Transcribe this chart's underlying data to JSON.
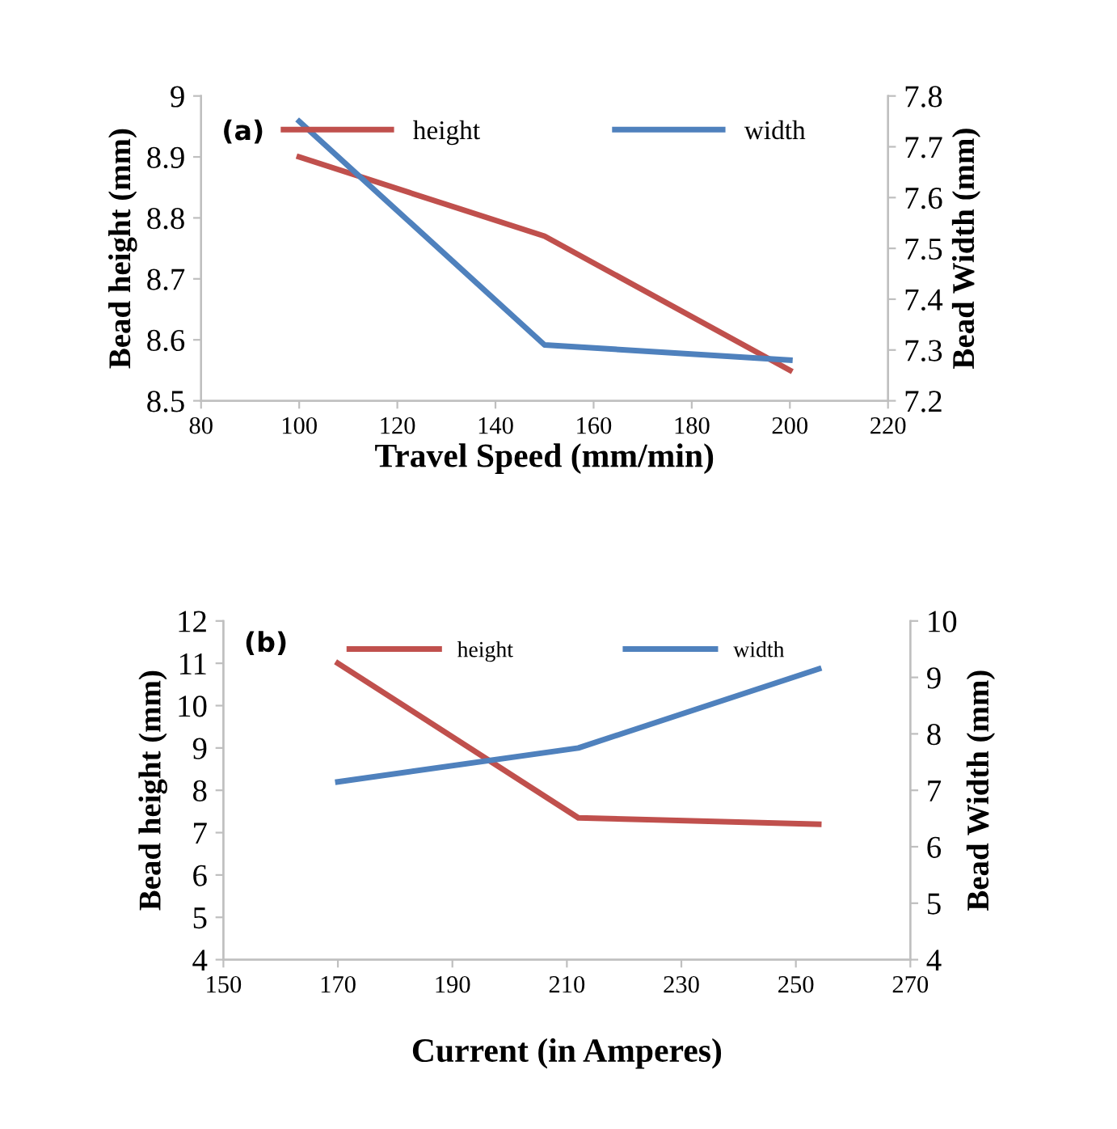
{
  "chart_data": [
    {
      "type": "line",
      "xlabel": "Travel Speed (mm/min)",
      "ylabel": "Bead height (mm)",
      "y2label": "Bead Width (mm)",
      "annotations": [
        "(a)"
      ],
      "x": [
        100,
        150,
        200
      ],
      "series": [
        {
          "name": "height",
          "color": "#c0504d",
          "values": [
            8.9,
            8.77,
            8.55
          ]
        },
        {
          "name": "width",
          "color": "#4f81bd",
          "values": [
            7.75,
            7.31,
            7.28
          ],
          "axis": "y2"
        }
      ],
      "xlim": [
        80,
        220
      ],
      "xticks": [
        80,
        100,
        120,
        140,
        160,
        180,
        200,
        220
      ],
      "ylim": [
        8.5,
        9
      ],
      "yticks": [
        8.5,
        8.6,
        8.7,
        8.8,
        8.9,
        9
      ],
      "y2lim": [
        7.2,
        7.8
      ],
      "y2ticks": [
        7.2,
        7.3,
        7.4,
        7.5,
        7.6,
        7.7,
        7.8
      ],
      "grid": false,
      "legend": "top",
      "marker": "none",
      "line_style": "solid"
    },
    {
      "type": "line",
      "xlabel": "Current (in Amperes)",
      "ylabel": "Bead height (mm)",
      "y2label": "Bead Width (mm)",
      "annotations": [
        "(b)"
      ],
      "x": [
        170,
        212,
        254
      ],
      "series": [
        {
          "name": "height",
          "color": "#c0504d",
          "values": [
            11.0,
            7.35,
            7.2
          ]
        },
        {
          "name": "width",
          "color": "#4f81bd",
          "values": [
            7.15,
            7.75,
            9.15
          ],
          "axis": "y2"
        }
      ],
      "xlim": [
        150,
        270
      ],
      "xticks": [
        150,
        170,
        190,
        210,
        230,
        250,
        270
      ],
      "ylim": [
        4,
        12
      ],
      "yticks": [
        4,
        5,
        6,
        7,
        8,
        9,
        10,
        11,
        12
      ],
      "y2lim": [
        4,
        10
      ],
      "y2ticks": [
        4,
        5,
        6,
        7,
        8,
        9,
        10
      ],
      "grid": false,
      "legend": "top",
      "marker": "none",
      "line_style": "solid"
    }
  ]
}
